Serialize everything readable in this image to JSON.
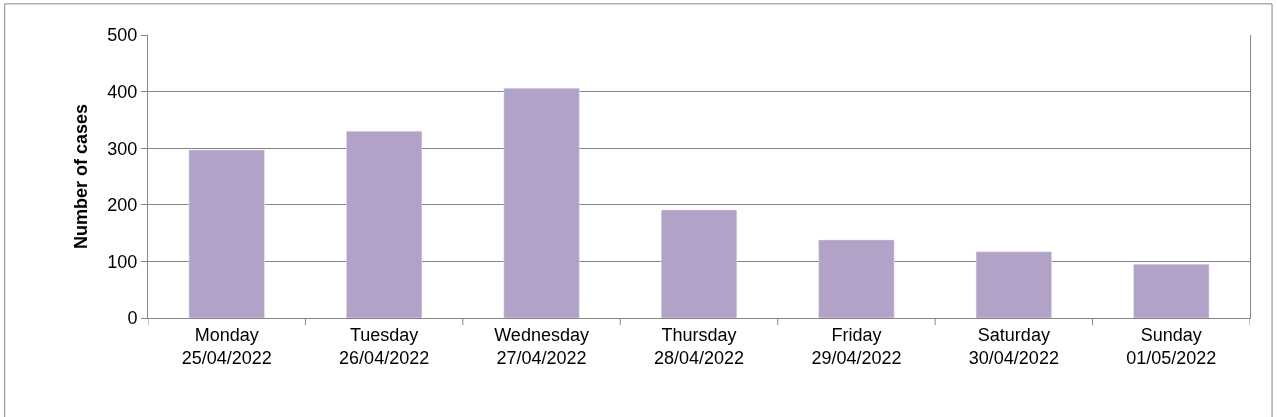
{
  "chart_data": {
    "type": "bar",
    "ylabel": "Number of cases",
    "categories": [
      "Monday\n25/04/2022",
      "Tuesday\n26/04/2022",
      "Wednesday\n27/04/2022",
      "Thursday\n28/04/2022",
      "Friday\n29/04/2022",
      "Saturday\n30/04/2022",
      "Sunday\n01/05/2022"
    ],
    "values": [
      297,
      330,
      406,
      191,
      138,
      117,
      95
    ],
    "color": "#b3a2c7",
    "ylim": [
      0,
      500
    ],
    "yticks": [
      0,
      100,
      200,
      300,
      400,
      500
    ],
    "grid": "y"
  }
}
